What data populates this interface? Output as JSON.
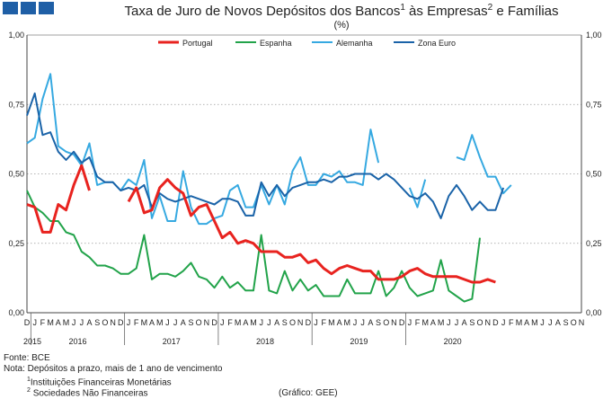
{
  "header": {
    "logo_color": "#1f5fa6",
    "title_main": "Taxa de Juro de Novos Depósitos dos Bancos",
    "title_sup1": "1",
    "title_mid": " às Empresas",
    "title_sup2": "2",
    "title_end": " e Famílias",
    "subtitle": "(%)"
  },
  "footer": {
    "source": "Fonte: BCE",
    "note": "Nota: Depósitos a prazo, mais de 1 ano de vencimento",
    "fn1_sup": "1",
    "fn1_text": "Instituições Financeiras Monetárias",
    "fn2_sup": "2",
    "fn2_text": "Sociedades Não Financeiras",
    "credit": "(Gráfico: GEE)"
  },
  "chart_data": {
    "type": "line",
    "title": "Taxa de Juro de Novos Depósitos dos Bancos às Empresas e Famílias",
    "ylabel": "(%)",
    "ylim": [
      0,
      1
    ],
    "yticks": [
      "0,00",
      "0,25",
      "0,50",
      "0,75",
      "1,00"
    ],
    "y_axis_both_sides": true,
    "grid": "horizontal dotted",
    "legend_position": "top",
    "month_labels": [
      "D",
      "J",
      "F",
      "M",
      "A",
      "M",
      "J",
      "J",
      "A",
      "S",
      "O",
      "N",
      "D",
      "J",
      "F",
      "M",
      "A",
      "M",
      "J",
      "J",
      "A",
      "S",
      "O",
      "N",
      "D",
      "J",
      "F",
      "M",
      "A",
      "M",
      "J",
      "J",
      "A",
      "S",
      "O",
      "N",
      "D",
      "J",
      "F",
      "M",
      "A",
      "M",
      "J",
      "J",
      "A",
      "S",
      "O",
      "N",
      "D",
      "J",
      "F",
      "M",
      "A",
      "M",
      "J",
      "J",
      "A",
      "S",
      "O",
      "N",
      "D",
      "J",
      "F",
      "M",
      "A",
      "M",
      "J",
      "J",
      "A",
      "S",
      "O",
      "N"
    ],
    "year_labels": [
      {
        "label": "2015",
        "index": 0
      },
      {
        "label": "2016",
        "index": 6.5
      },
      {
        "label": "2017",
        "index": 18.5
      },
      {
        "label": "2018",
        "index": 30.5
      },
      {
        "label": "2019",
        "index": 42.5
      },
      {
        "label": "2020",
        "index": 54.5
      }
    ],
    "series": [
      {
        "name": "Portugal",
        "color": "#e8231f",
        "values": [
          0.39,
          0.38,
          0.29,
          0.29,
          0.39,
          0.37,
          0.46,
          0.53,
          0.44,
          null,
          null,
          null,
          null,
          0.4,
          0.45,
          0.36,
          0.37,
          0.45,
          0.48,
          0.45,
          0.43,
          0.35,
          0.38,
          0.39,
          0.33,
          0.27,
          0.29,
          0.25,
          0.26,
          0.25,
          0.22,
          0.22,
          0.22,
          0.2,
          0.2,
          0.21,
          0.18,
          0.19,
          0.16,
          0.14,
          0.16,
          0.17,
          0.16,
          0.15,
          0.15,
          0.12,
          0.12,
          0.12,
          0.13,
          0.15,
          0.16,
          0.14,
          0.13,
          0.13,
          0.13,
          0.13,
          0.12,
          0.11,
          0.11,
          0.12,
          0.11
        ]
      },
      {
        "name": "Espanha",
        "color": "#22a34a",
        "values": [
          0.44,
          0.38,
          0.36,
          0.33,
          0.33,
          0.29,
          0.28,
          0.22,
          0.2,
          0.17,
          0.17,
          0.16,
          0.14,
          0.14,
          0.16,
          0.28,
          0.12,
          0.14,
          0.14,
          0.13,
          0.15,
          0.18,
          0.13,
          0.12,
          0.09,
          0.13,
          0.09,
          0.11,
          0.08,
          0.08,
          0.28,
          0.08,
          0.07,
          0.15,
          0.08,
          0.12,
          0.08,
          0.1,
          0.06,
          0.06,
          0.06,
          0.12,
          0.07,
          0.07,
          0.07,
          0.15,
          0.06,
          0.09,
          0.15,
          0.09,
          0.06,
          0.07,
          0.08,
          0.19,
          0.08,
          0.06,
          0.04,
          0.05,
          0.27
        ]
      },
      {
        "name": "Alemanha",
        "color": "#36a9e1",
        "values": [
          0.61,
          0.63,
          0.77,
          0.86,
          0.6,
          0.58,
          0.57,
          0.53,
          0.61,
          0.46,
          0.47,
          0.47,
          0.44,
          0.48,
          0.46,
          0.55,
          0.34,
          0.42,
          0.33,
          0.33,
          0.51,
          0.38,
          0.32,
          0.32,
          0.34,
          0.35,
          0.44,
          0.46,
          0.38,
          0.38,
          0.46,
          0.39,
          0.46,
          0.39,
          0.51,
          0.56,
          0.46,
          0.46,
          0.5,
          0.49,
          0.51,
          0.47,
          0.47,
          0.46,
          0.66,
          0.54,
          null,
          null,
          null,
          0.45,
          0.38,
          0.48,
          null,
          null,
          null,
          0.56,
          0.55,
          0.64,
          0.56,
          0.49,
          0.49,
          0.43,
          0.46
        ]
      },
      {
        "name": "Zona Euro",
        "color": "#1a63a8",
        "values": [
          0.71,
          0.79,
          0.64,
          0.65,
          0.58,
          0.55,
          0.58,
          0.54,
          0.56,
          0.49,
          0.47,
          0.47,
          0.44,
          0.45,
          0.44,
          0.46,
          0.38,
          0.43,
          0.41,
          0.4,
          0.41,
          0.42,
          0.41,
          0.4,
          0.39,
          0.41,
          0.41,
          0.4,
          0.35,
          0.35,
          0.47,
          0.42,
          0.46,
          0.42,
          0.45,
          0.46,
          0.47,
          0.47,
          0.48,
          0.47,
          0.49,
          0.49,
          0.5,
          0.5,
          0.5,
          0.48,
          0.5,
          0.48,
          0.45,
          0.42,
          0.41,
          0.43,
          0.4,
          0.34,
          0.42,
          0.46,
          0.42,
          0.37,
          0.4,
          0.37,
          0.37,
          0.45
        ]
      }
    ]
  }
}
